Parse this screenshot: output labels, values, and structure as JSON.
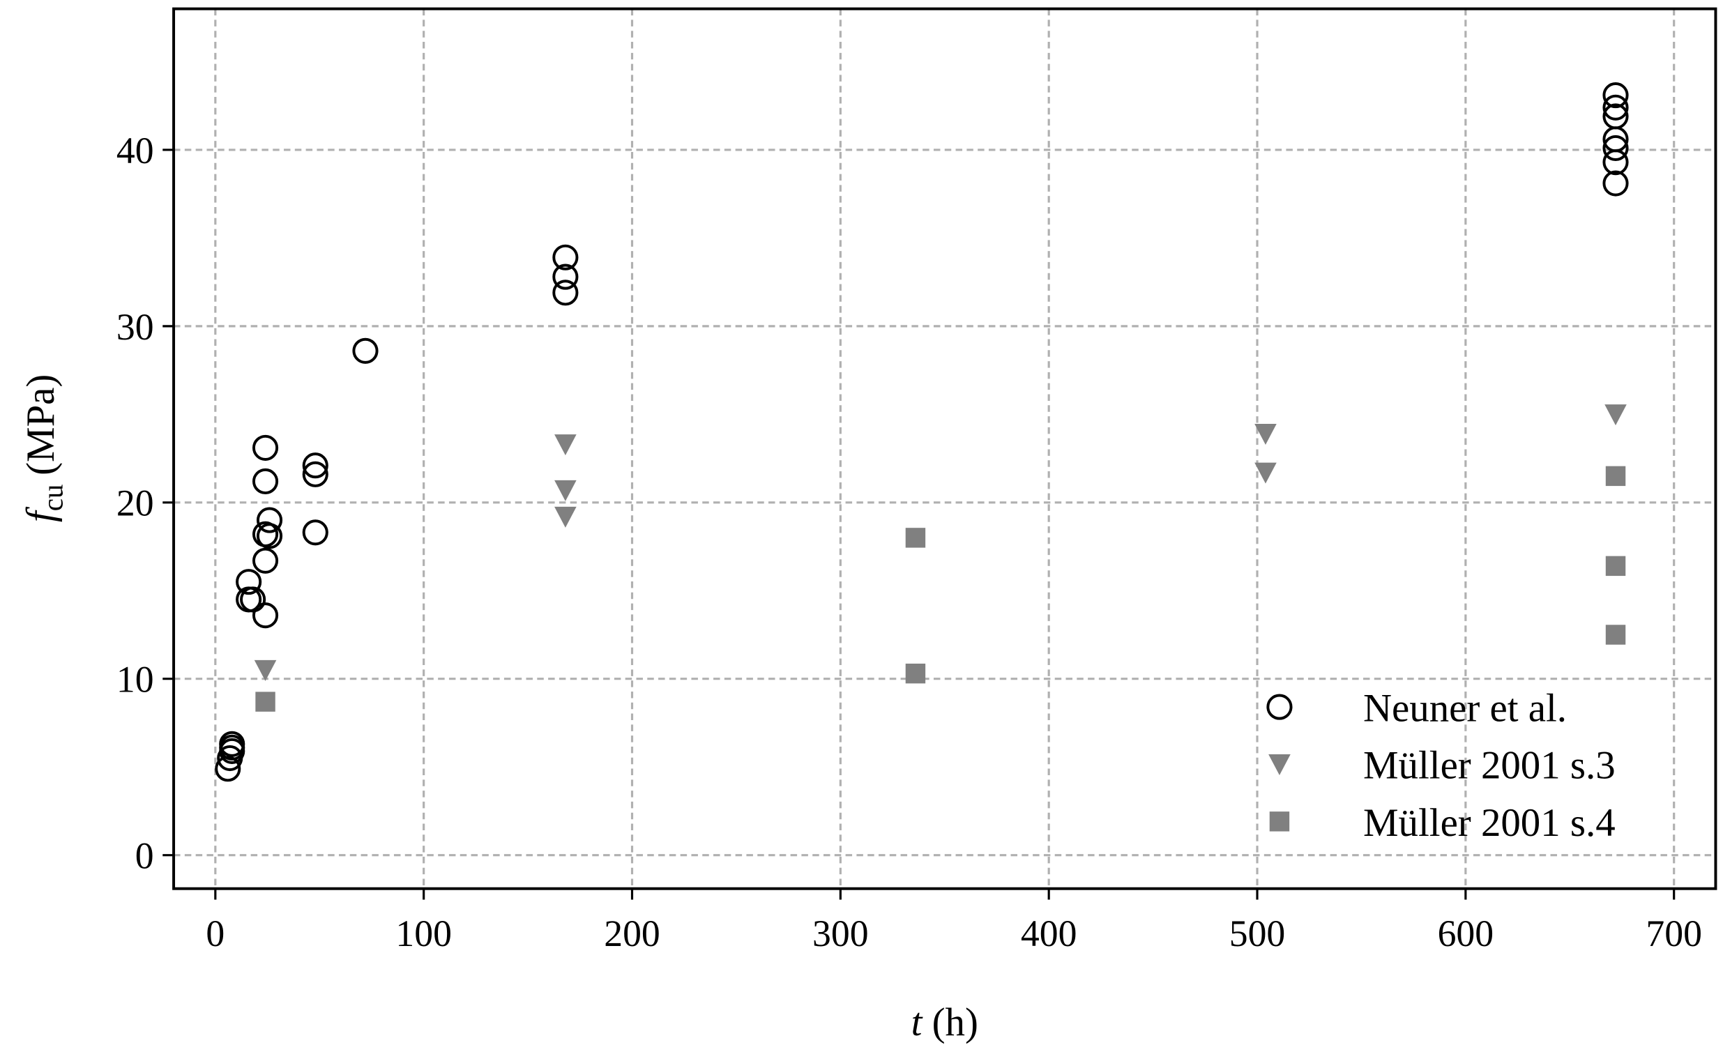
{
  "chart_data": {
    "type": "scatter",
    "x_label": {
      "symbol": "t",
      "unit": "(h)"
    },
    "y_label": {
      "symbol": "f",
      "subscript": "cu",
      "unit": "(MPa)"
    },
    "xlim": [
      -20,
      720
    ],
    "xticks": [
      0,
      100,
      200,
      300,
      400,
      500,
      600,
      700
    ],
    "ylim": [
      -1.9,
      48
    ],
    "yticks": [
      0,
      10,
      20,
      30,
      40
    ],
    "grid": true,
    "legend": "lower right",
    "series": [
      {
        "name": "Neuner et al.",
        "marker": "circle",
        "color": "#000000",
        "x": [
          6,
          7,
          8,
          8,
          8,
          16,
          16,
          18,
          24,
          24,
          26,
          24,
          26,
          24,
          24,
          48,
          48,
          48,
          72,
          168,
          168,
          168,
          672,
          672,
          672,
          672,
          672,
          672,
          672
        ],
        "values": [
          4.9,
          5.5,
          5.9,
          6.1,
          6.3,
          15.5,
          14.5,
          14.5,
          23.1,
          21.2,
          19.0,
          18.2,
          18.1,
          16.7,
          13.6,
          22.1,
          21.6,
          18.3,
          28.6,
          33.9,
          32.8,
          31.9,
          43.1,
          42.4,
          41.9,
          40.6,
          40.1,
          39.3,
          38.1
        ]
      },
      {
        "name": "Müller 2001 s.3",
        "marker": "triangle_down",
        "color": "#808080",
        "x": [
          24,
          168,
          168,
          168,
          504,
          504,
          672
        ],
        "values": [
          10.5,
          23.3,
          20.7,
          19.2,
          23.9,
          21.7,
          25.0
        ]
      },
      {
        "name": "Müller 2001 s.4",
        "marker": "square",
        "color": "#808080",
        "x": [
          24,
          336,
          336,
          672,
          672,
          672
        ],
        "values": [
          8.7,
          18.0,
          10.3,
          21.5,
          16.4,
          12.5
        ]
      }
    ]
  }
}
